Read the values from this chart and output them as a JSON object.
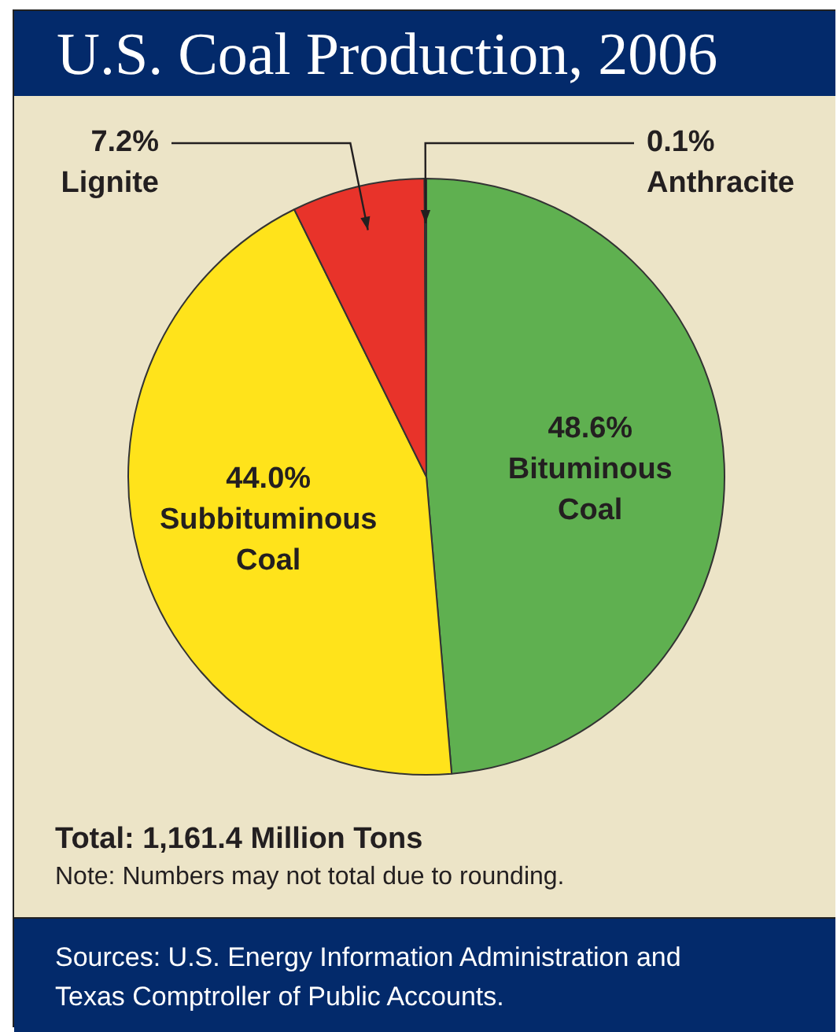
{
  "chart_data": {
    "type": "pie",
    "title": "U.S. Coal Production, 2006",
    "categories": [
      "Bituminous Coal",
      "Subbituminous Coal",
      "Lignite",
      "Anthracite"
    ],
    "values": [
      48.6,
      44.0,
      7.2,
      0.1
    ],
    "colors": [
      "#5fb050",
      "#ffe31b",
      "#e8332a",
      "#3b82c4"
    ],
    "value_labels": [
      "48.6%",
      "44.0%",
      "7.2%",
      "0.1%"
    ],
    "legend": false,
    "annotations": [
      "Total: 1,161.4 Million Tons",
      "Note: Numbers may not total due to rounding.",
      "Sources: U.S. Energy Information Administration and Texas Comptroller of Public Accounts."
    ]
  }
}
